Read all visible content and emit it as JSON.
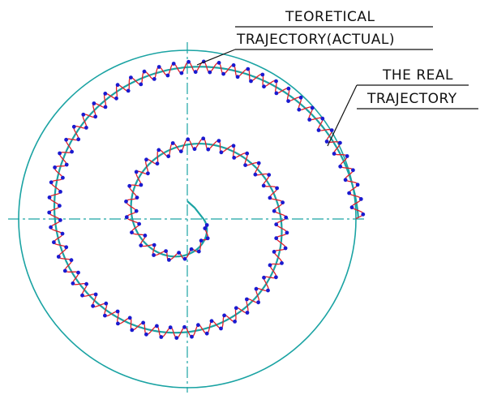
{
  "labels": {
    "theoretical": [
      "TEORETICAL",
      "TRAJECTORY(ACTUAL)"
    ],
    "real": [
      "THE REAL",
      "TRAJECTORY"
    ]
  }
}
